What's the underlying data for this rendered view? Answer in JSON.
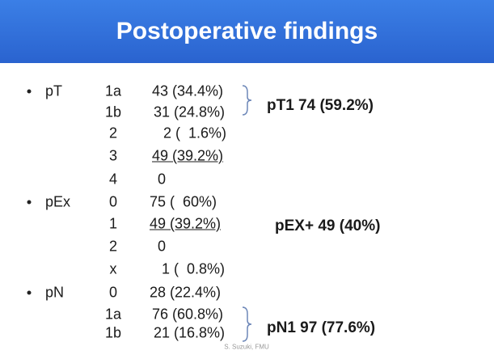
{
  "header": {
    "title": "Postoperative findings"
  },
  "groups": [
    {
      "label": "pT",
      "rows": [
        {
          "code": "1a",
          "value": "43 (34.4%)"
        },
        {
          "code": "1b",
          "value": "31 (24.8%)"
        },
        {
          "code": "2",
          "value": "2 (  1.6%)"
        },
        {
          "code": "3",
          "value": "49 (39.2%)"
        },
        {
          "code": "4",
          "value": "0"
        }
      ],
      "summary": "pT1 74 (59.2%)"
    },
    {
      "label": "pEx",
      "rows": [
        {
          "code": "0",
          "value": "75 (  60%)"
        },
        {
          "code": "1",
          "value": "49 (39.2%)"
        },
        {
          "code": "2",
          "value": "0"
        },
        {
          "code": "x",
          "value": "1 (  0.8%)"
        }
      ],
      "summary": "pEX+ 49 (40%)"
    },
    {
      "label": "pN",
      "rows": [
        {
          "code": "0",
          "value": "28 (22.4%)"
        },
        {
          "code": "1a",
          "value": "76 (60.8%)"
        },
        {
          "code": "1b",
          "value": "21 (16.8%)"
        }
      ],
      "summary": "pN1 97 (77.6%)"
    }
  ],
  "footer": "S. Suzuki, FMU"
}
